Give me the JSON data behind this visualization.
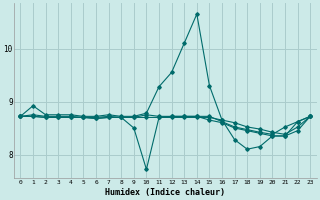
{
  "xlabel": "Humidex (Indice chaleur)",
  "background_color": "#cceae8",
  "grid_color": "#aacccc",
  "line_color": "#006b6b",
  "xlim": [
    -0.5,
    23.5
  ],
  "ylim": [
    7.55,
    10.85
  ],
  "yticks": [
    8,
    9,
    10
  ],
  "xticks": [
    0,
    1,
    2,
    3,
    4,
    5,
    6,
    7,
    8,
    9,
    10,
    11,
    12,
    13,
    14,
    15,
    16,
    17,
    18,
    19,
    20,
    21,
    22,
    23
  ],
  "series": [
    [
      8.72,
      8.92,
      8.75,
      8.75,
      8.75,
      8.72,
      8.72,
      8.75,
      8.72,
      8.72,
      8.78,
      9.28,
      9.55,
      10.1,
      10.65,
      9.3,
      8.65,
      8.28,
      8.1,
      8.15,
      8.35,
      8.35,
      8.62,
      8.72
    ],
    [
      8.72,
      8.75,
      8.72,
      8.72,
      8.72,
      8.7,
      8.7,
      8.72,
      8.7,
      8.5,
      7.72,
      8.7,
      8.72,
      8.72,
      8.72,
      8.65,
      8.6,
      8.5,
      8.45,
      8.4,
      8.35,
      8.35,
      8.45,
      8.72
    ],
    [
      8.72,
      8.72,
      8.7,
      8.7,
      8.7,
      8.7,
      8.68,
      8.7,
      8.7,
      8.7,
      8.7,
      8.7,
      8.7,
      8.7,
      8.7,
      8.7,
      8.65,
      8.6,
      8.52,
      8.48,
      8.42,
      8.38,
      8.52,
      8.72
    ],
    [
      8.72,
      8.72,
      8.7,
      8.7,
      8.7,
      8.7,
      8.68,
      8.7,
      8.7,
      8.7,
      8.75,
      8.72,
      8.72,
      8.72,
      8.72,
      8.72,
      8.62,
      8.52,
      8.47,
      8.42,
      8.38,
      8.52,
      8.62,
      8.72
    ]
  ]
}
